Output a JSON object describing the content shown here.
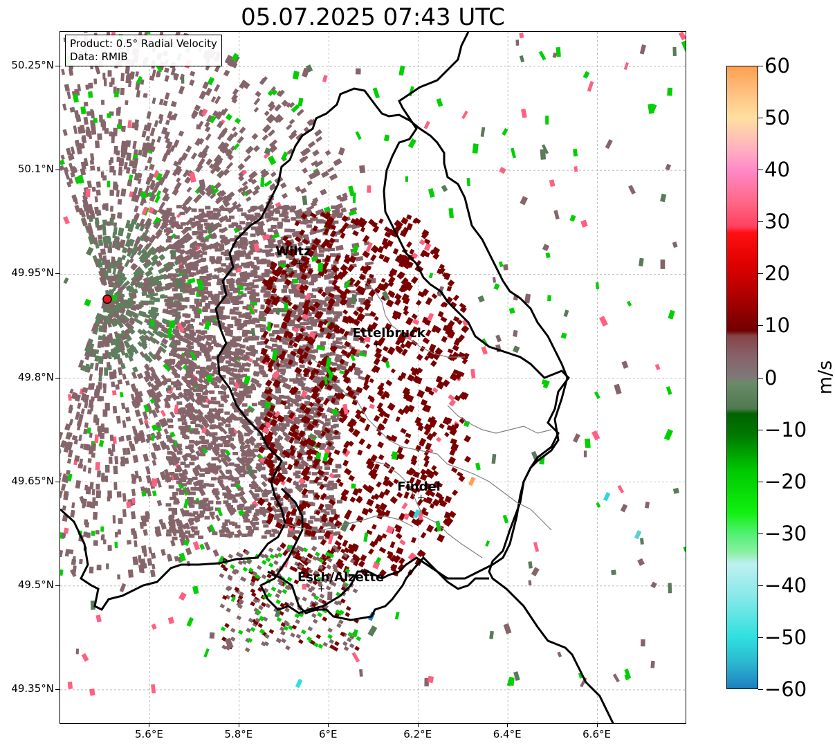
{
  "title": "05.07.2025 07:43 UTC",
  "info": {
    "product": "Product: 0.5° Radial Velocity",
    "data_source": "Data: RMIB"
  },
  "map": {
    "lon_range": [
      5.4,
      6.8
    ],
    "lat_range": [
      49.3,
      50.3
    ],
    "lat_ticks": [
      "50.25°N",
      "50.1°N",
      "49.95°N",
      "49.8°N",
      "49.65°N",
      "49.5°N",
      "49.35°N"
    ],
    "lon_ticks": [
      "5.6°E",
      "5.8°E",
      "6°E",
      "6.2°E",
      "6.4°E",
      "6.6°E"
    ],
    "radar_site": {
      "lon": 5.505,
      "lat": 49.914,
      "color": "#e8151b"
    },
    "cities": [
      {
        "name": "Wiltz",
        "lon": 5.932,
        "lat": 49.966
      },
      {
        "name": "Ettelbruck",
        "lon": 6.104,
        "lat": 49.848
      },
      {
        "name": "Findel",
        "lon": 6.204,
        "lat": 49.627
      },
      {
        "name": "Esch/Alzette",
        "lon": 5.981,
        "lat": 49.496
      }
    ],
    "colors": {
      "inbound_strong": "#00d000",
      "outbound_weak": "#85656a",
      "outbound_moderate": "#7a0000",
      "near_zero": "#5f7f5f",
      "outbound_pink": "#ff6080"
    }
  },
  "colorbar": {
    "label": "m/s",
    "ticks": [
      "60",
      "50",
      "40",
      "30",
      "20",
      "10",
      "0",
      "−10",
      "−20",
      "−30",
      "−40",
      "−50",
      "−60"
    ],
    "range": [
      -60,
      60
    ],
    "stops": [
      {
        "v": -60,
        "c": "#1f7fc0"
      },
      {
        "v": -55,
        "c": "#2ab8d0"
      },
      {
        "v": -50,
        "c": "#30e0e0"
      },
      {
        "v": -43,
        "c": "#80e8e8"
      },
      {
        "v": -36,
        "c": "#bff0f0"
      },
      {
        "v": -34,
        "c": "#8ef0a8"
      },
      {
        "v": -30,
        "c": "#50f070"
      },
      {
        "v": -26,
        "c": "#10f010"
      },
      {
        "v": -18,
        "c": "#00c800"
      },
      {
        "v": -11,
        "c": "#007800"
      },
      {
        "v": -7,
        "c": "#006400"
      },
      {
        "v": -6,
        "c": "#4f7a4f"
      },
      {
        "v": -1,
        "c": "#6b8a6b"
      },
      {
        "v": 0,
        "c": "#7f7878"
      },
      {
        "v": 4,
        "c": "#86636a"
      },
      {
        "v": 8,
        "c": "#874448"
      },
      {
        "v": 9,
        "c": "#700000"
      },
      {
        "v": 16,
        "c": "#b00000"
      },
      {
        "v": 22,
        "c": "#e00000"
      },
      {
        "v": 28,
        "c": "#ff1010"
      },
      {
        "v": 29,
        "c": "#ff4060"
      },
      {
        "v": 34,
        "c": "#ff6888"
      },
      {
        "v": 40,
        "c": "#ff88c8"
      },
      {
        "v": 44,
        "c": "#ffb0c0"
      },
      {
        "v": 50,
        "c": "#ffe0a0"
      },
      {
        "v": 55,
        "c": "#ffc080"
      },
      {
        "v": 60,
        "c": "#ffa050"
      }
    ]
  }
}
